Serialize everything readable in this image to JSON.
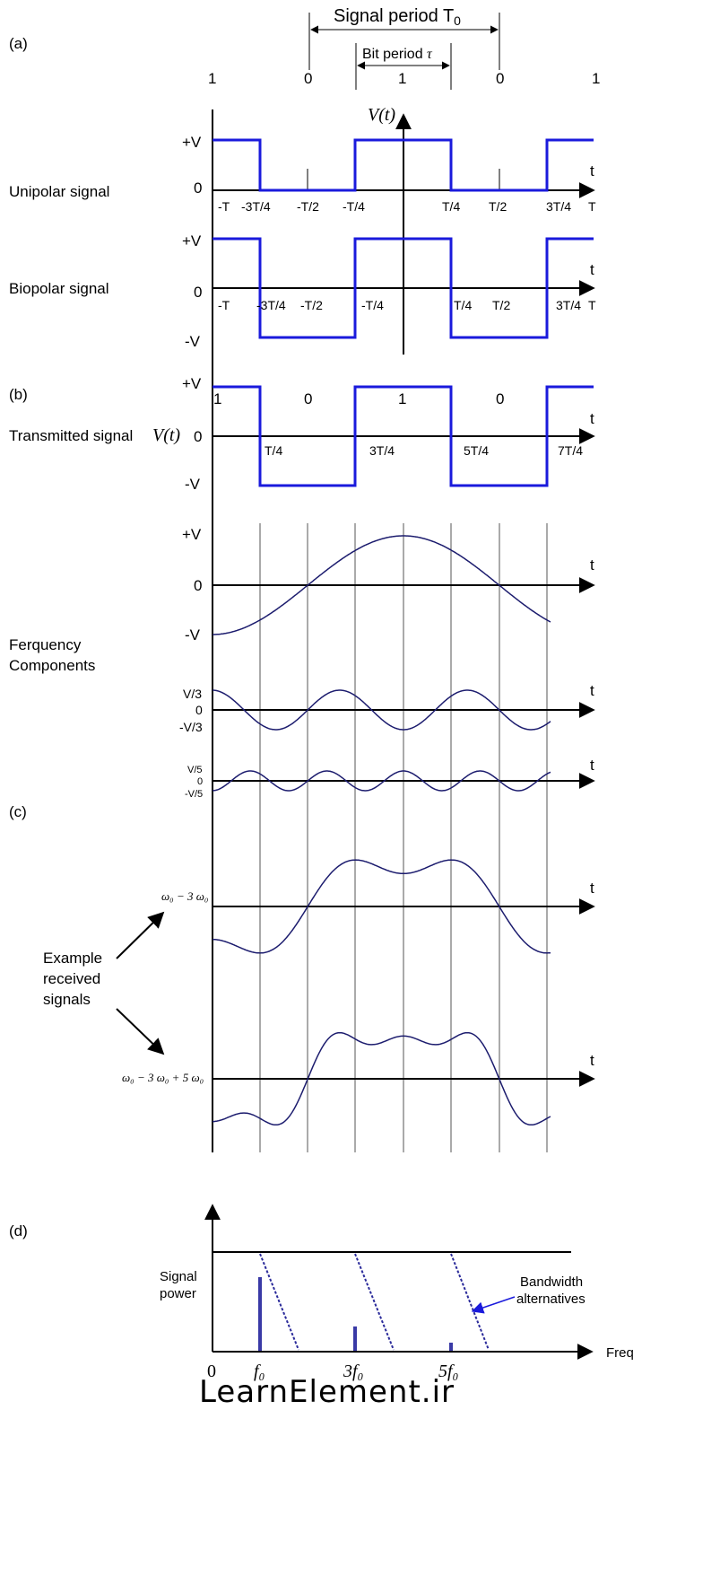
{
  "section_labels": [
    "(a)",
    "(b)",
    "(c)",
    "(d)"
  ],
  "top": {
    "signal_period": "Signal period T",
    "signal_period_sub": "0",
    "bit_period": "Bit period ",
    "bit_period_symbol": "τ",
    "bits": [
      "1",
      "0",
      "1",
      "0",
      "1"
    ],
    "v_axis_label": "V(t)"
  },
  "unipolar": {
    "name": "Unipolar signal",
    "levels": [
      "+V",
      "0"
    ],
    "t_label": "t",
    "ticks": [
      "-T",
      "-3T/4",
      "-T/2",
      "-T/4",
      "T/4",
      "T/2",
      "3T/4",
      "T"
    ]
  },
  "bipolar": {
    "name": "Biopolar signal",
    "levels": [
      "+V",
      "0",
      "-V"
    ],
    "t_label": "t",
    "ticks": [
      "-T",
      "-3T/4",
      "-T/2",
      "-T/4",
      "T/4",
      "T/2",
      "3T/4",
      "T"
    ]
  },
  "transmitted": {
    "name": "Transmitted signal",
    "symbol": "V(t)",
    "levels": [
      "+V",
      "0",
      "-V"
    ],
    "bits": [
      "1",
      "0",
      "1",
      "0"
    ],
    "t_label": "t",
    "ticks": [
      "T/4",
      "3T/4",
      "5T/4",
      "7T/4"
    ]
  },
  "components": {
    "name_line1": "Ferquency",
    "name_line2": "Components",
    "c1_levels": [
      "+V",
      "0",
      "-V"
    ],
    "c3_levels": [
      "V/3",
      "0",
      "-V/3"
    ],
    "c5_levels": [
      "V/5",
      "0",
      "-V/5"
    ],
    "t_label": "t"
  },
  "received": {
    "name_line1": "Example",
    "name_line2": "received",
    "name_line3": "signals",
    "r1_label": "ω₀ − 3 ω₀",
    "r2_label": "ω₀ − 3 ω₀ + 5 ω₀",
    "t_label": "t"
  },
  "spectrum": {
    "ylabel_line1": "Signal",
    "ylabel_line2": "power",
    "xlabel": "Freq",
    "x_ticks": [
      "0",
      "f₀",
      "3f₀",
      "5f₀"
    ],
    "annotation_line1": "Bandwidth",
    "annotation_line2": "alternatives",
    "relative_power": [
      1.0,
      0.33,
      0.11
    ]
  },
  "watermark": "LearnElement.ir",
  "colors": {
    "square_wave": "#1a1adc",
    "harmonic": "#1c1c6e",
    "bandwidth": "#2a2a9a"
  }
}
